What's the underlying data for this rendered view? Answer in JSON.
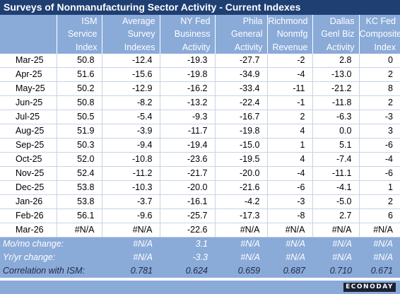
{
  "title": "Surveys of Nonmanufacturing Sector Activity - Current Indexes",
  "columns": [
    [
      "",
      "",
      ""
    ],
    [
      "ISM",
      "Service",
      "Index"
    ],
    [
      "Average",
      "Survey",
      "Indexes"
    ],
    [
      "NY Fed",
      "Business",
      "Activity"
    ],
    [
      "Phila",
      "General",
      "Activity"
    ],
    [
      "Richmond",
      "Nonmfg",
      "Revenue"
    ],
    [
      "Dallas",
      "Genl Biz",
      "Activity"
    ],
    [
      "KC Fed",
      "Composite",
      "Index"
    ]
  ],
  "rows": [
    [
      "Mar-25",
      "50.8",
      "-12.4",
      "-19.3",
      "-27.7",
      "-2",
      "2.8",
      "0"
    ],
    [
      "Apr-25",
      "51.6",
      "-15.6",
      "-19.8",
      "-34.9",
      "-4",
      "-13.0",
      "2"
    ],
    [
      "May-25",
      "50.2",
      "-12.9",
      "-16.2",
      "-33.4",
      "-11",
      "-21.2",
      "8"
    ],
    [
      "Jun-25",
      "50.8",
      "-8.2",
      "-13.2",
      "-22.4",
      "-1",
      "-11.8",
      "2"
    ],
    [
      "Jul-25",
      "50.5",
      "-5.4",
      "-9.3",
      "-16.7",
      "2",
      "-6.3",
      "-3"
    ],
    [
      "Aug-25",
      "51.9",
      "-3.9",
      "-11.7",
      "-19.8",
      "4",
      "0.0",
      "3"
    ],
    [
      "Sep-25",
      "50.3",
      "-9.4",
      "-19.4",
      "-15.0",
      "1",
      "5.1",
      "-6"
    ],
    [
      "Oct-25",
      "52.0",
      "-10.8",
      "-23.6",
      "-19.5",
      "4",
      "-7.4",
      "-4"
    ],
    [
      "Nov-25",
      "52.4",
      "-11.2",
      "-21.7",
      "-20.0",
      "-4",
      "-11.1",
      "-6"
    ],
    [
      "Dec-25",
      "53.8",
      "-10.3",
      "-20.0",
      "-21.6",
      "-6",
      "-4.1",
      "1"
    ],
    [
      "Jan-26",
      "53.8",
      "-3.7",
      "-16.1",
      "-4.2",
      "-3",
      "-5.0",
      "2"
    ],
    [
      "Feb-26",
      "56.1",
      "-9.6",
      "-25.7",
      "-17.3",
      "-8",
      "2.7",
      "6"
    ],
    [
      "Mar-26",
      "#N/A",
      "#N/A",
      "-22.6",
      "#N/A",
      "#N/A",
      "#N/A",
      "#N/A"
    ]
  ],
  "summary": [
    [
      "Mo/mo change:",
      "",
      "#N/A",
      "3.1",
      "#N/A",
      "#N/A",
      "#N/A",
      "#N/A"
    ],
    [
      "Yr/yr change:",
      "",
      "#N/A",
      "-3.3",
      "#N/A",
      "#N/A",
      "#N/A",
      "#N/A"
    ],
    [
      "Correlation with ISM:",
      "",
      "0.781",
      "0.624",
      "0.659",
      "0.687",
      "0.710",
      "0.671"
    ]
  ],
  "logo_text": "ECONODAY",
  "colors": {
    "title_bg": "#1f3f73",
    "header_bg": "#8aaad8",
    "grid_line": "#c8d3e6"
  }
}
